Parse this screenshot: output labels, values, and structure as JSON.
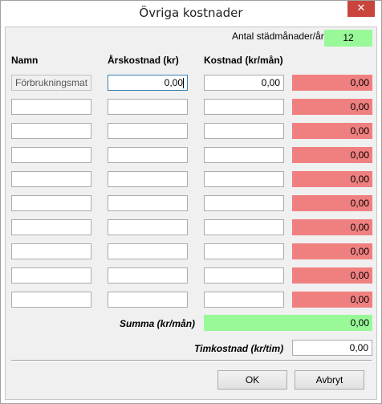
{
  "window": {
    "title": "Övriga kostnader",
    "close_glyph": "✕"
  },
  "months": {
    "label": "Antal städmånader/år",
    "value": "12",
    "color": "#99f999"
  },
  "columns": {
    "name": "Namn",
    "annual": "Årskostnad (kr)",
    "monthly": "Kostnad (kr/mån)"
  },
  "rows": [
    {
      "name": "Förbrukningsmat",
      "annual": "0,00",
      "monthly": "0,00",
      "result": "0,00"
    },
    {
      "name": "",
      "annual": "",
      "monthly": "",
      "result": "0,00"
    },
    {
      "name": "",
      "annual": "",
      "monthly": "",
      "result": "0,00"
    },
    {
      "name": "",
      "annual": "",
      "monthly": "",
      "result": "0,00"
    },
    {
      "name": "",
      "annual": "",
      "monthly": "",
      "result": "0,00"
    },
    {
      "name": "",
      "annual": "",
      "monthly": "",
      "result": "0,00"
    },
    {
      "name": "",
      "annual": "",
      "monthly": "",
      "result": "0,00"
    },
    {
      "name": "",
      "annual": "",
      "monthly": "",
      "result": "0,00"
    },
    {
      "name": "",
      "annual": "",
      "monthly": "",
      "result": "0,00"
    },
    {
      "name": "",
      "annual": "",
      "monthly": "",
      "result": "0,00"
    }
  ],
  "summary": {
    "label": "Summa (kr/mån)",
    "value": "0,00"
  },
  "hourly": {
    "label": "Timkostnad (kr/tim)",
    "value": "0,00"
  },
  "buttons": {
    "ok": "OK",
    "cancel": "Avbryt"
  },
  "colors": {
    "result_red": "#f08080",
    "sum_green": "#99f999"
  }
}
